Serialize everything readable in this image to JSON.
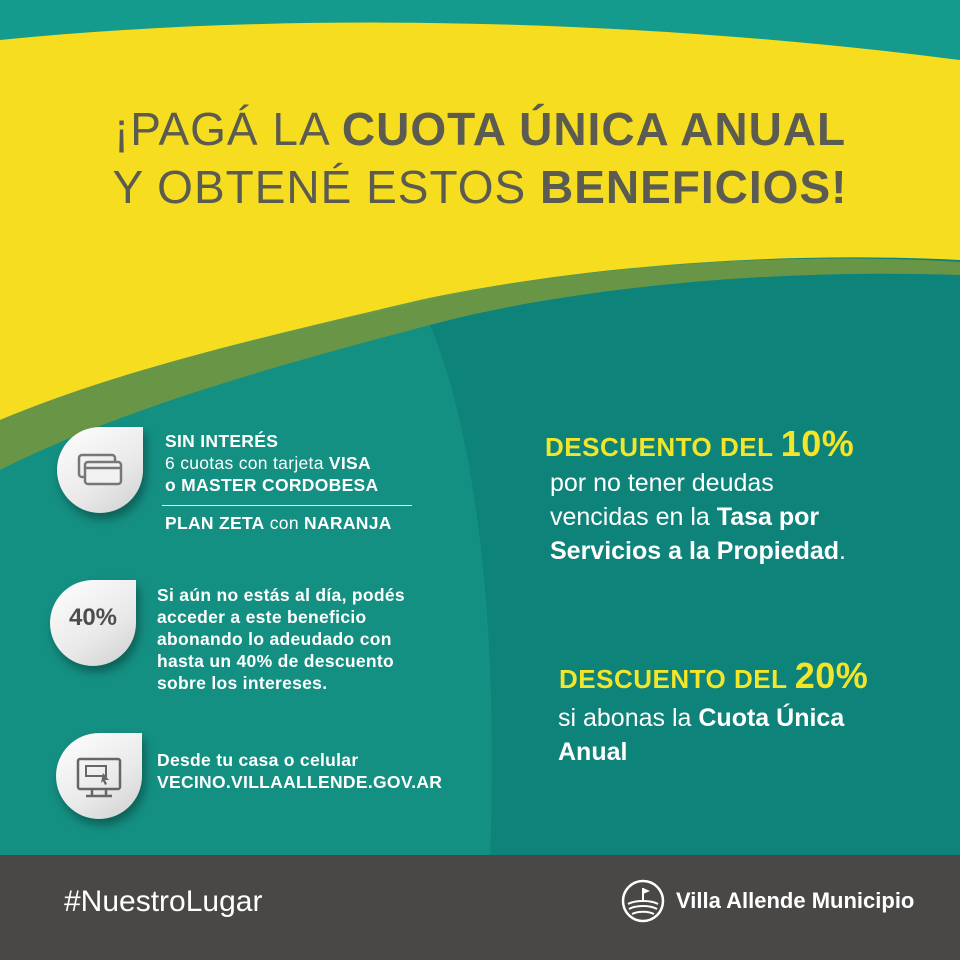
{
  "headline": {
    "line1_pre": "¡PAGÁ LA ",
    "line1_bold": "CUOTA ÚNICA ANUAL",
    "line2_pre": "Y OBTENÉ ESTOS ",
    "line2_bold": "BENEFICIOS!"
  },
  "benefits": {
    "cards": {
      "icon": "credit-card-icon",
      "line1": "SIN INTERÉS",
      "line2_pre": "6 cuotas con tarjeta ",
      "line2_bold": "VISA",
      "line3": "o MASTER CORDOBESA",
      "line4_bold1": "PLAN ZETA",
      "line4_mid": " con ",
      "line4_bold2": "NARANJA"
    },
    "forty": {
      "badge": "40%",
      "lines": [
        "Si aún no estás al día, podés",
        "acceder a este beneficio",
        "abonando lo adeudado con",
        "hasta un 40% de descuento",
        "sobre los intereses."
      ]
    },
    "online": {
      "icon": "computer-monitor-icon",
      "line1": "Desde tu casa o celular",
      "line2": "VECINO.VILLAALLENDE.GOV.AR"
    }
  },
  "discounts": {
    "ten": {
      "head_small": "DESCUENTO DEL ",
      "head_big": "10%",
      "line1": "por no tener deudas",
      "line2_pre": "vencidas en la ",
      "line2_bold": "Tasa por",
      "line3_bold": "Servicios a la Propiedad",
      "line3_end": "."
    },
    "twenty": {
      "head_small": "DESCUENTO DEL ",
      "head_big": "20%",
      "line1_pre": "si abonas la ",
      "line1_bold": "Cuota Única",
      "line2_bold": "Anual"
    }
  },
  "footer": {
    "hashtag": "#NuestroLugar",
    "municipality": "Villa Allende Municipio",
    "logo_icon": "villa-allende-logo-icon"
  },
  "colors": {
    "teal": "#0f8b80",
    "yellow": "#f7dd1f",
    "dark_gray": "#4a4846",
    "headline_gray": "#5b5b52",
    "accent_yellow": "#f2e52a"
  }
}
